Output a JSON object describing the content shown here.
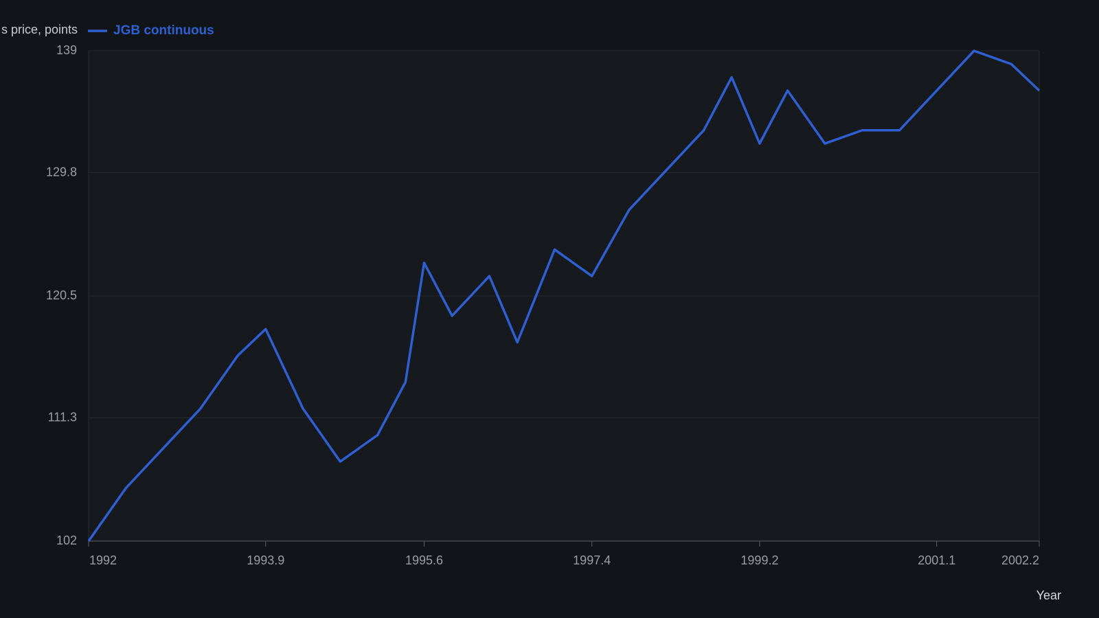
{
  "chart_data": {
    "type": "line",
    "y_label": "s price, points",
    "x_label": "Year",
    "x": [
      1992,
      1992.4,
      1993.2,
      1993.6,
      1993.9,
      1994.3,
      1994.7,
      1995.1,
      1995.4,
      1995.6,
      1995.9,
      1996.3,
      1996.6,
      1997.0,
      1997.4,
      1997.8,
      1998.6,
      1998.9,
      1999.2,
      1999.5,
      1999.9,
      2000.3,
      2000.7,
      2001.5,
      2001.9,
      2002.2
    ],
    "series": [
      {
        "name": "JGB continuous",
        "color": "#2f5fd0",
        "values": [
          102,
          106,
          112,
          116,
          118,
          112,
          108,
          110,
          114,
          123,
          119,
          122,
          117,
          124,
          122,
          127,
          133,
          137,
          132,
          136,
          132,
          133,
          133,
          139,
          138,
          136
        ]
      }
    ],
    "xlim": [
      1992,
      2002.2
    ],
    "xticks": [
      1992,
      1993.9,
      1995.6,
      1997.4,
      1999.2,
      2001.1,
      2002.2
    ],
    "ylim": [
      102,
      139
    ],
    "yticks": [
      102,
      111.3,
      120.5,
      129.8,
      139
    ],
    "grid": true,
    "legend": "top-left"
  }
}
